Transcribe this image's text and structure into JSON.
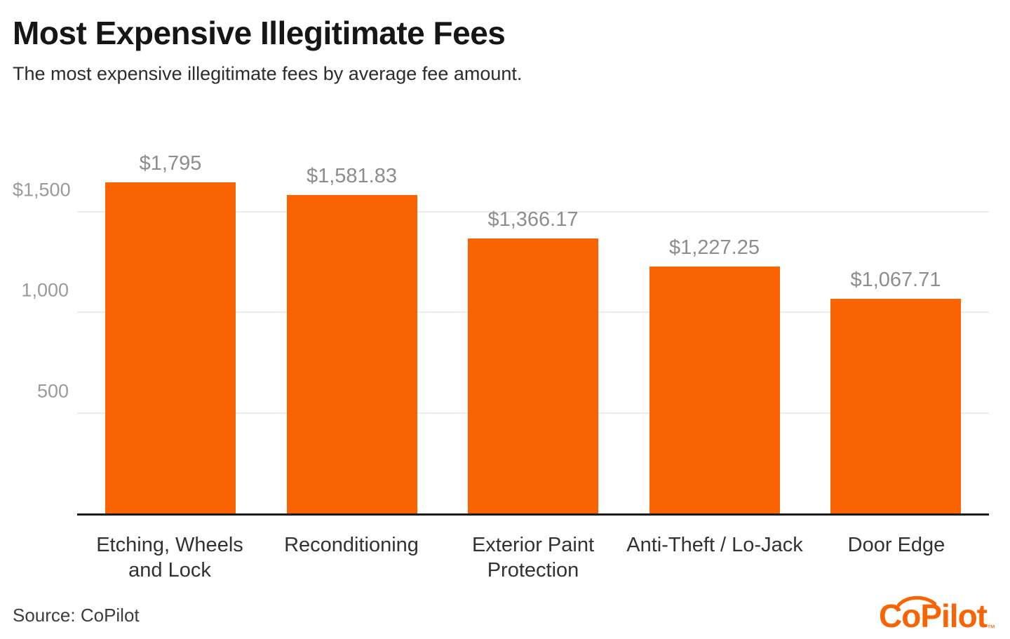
{
  "header": {
    "title": "Most Expensive Illegitimate Fees",
    "subtitle": "The most expensive illegitimate fees by average fee amount."
  },
  "chart_data": {
    "type": "bar",
    "title": "Most Expensive Illegitimate Fees",
    "categories": [
      "Etching, Wheels and Lock",
      "Reconditioning",
      "Exterior Paint Protection",
      "Anti-Theft / Lo-Jack",
      "Door Edge"
    ],
    "values": [
      1795,
      1581.83,
      1366.17,
      1227.25,
      1067.71
    ],
    "value_labels": [
      "$1,795",
      "$1,581.83",
      "$1,366.17",
      "$1,227.25",
      "$1,067.71"
    ],
    "y_ticks": [
      {
        "value": 1500,
        "label": "$1,500"
      },
      {
        "value": 1000,
        "label": "1,000"
      },
      {
        "value": 500,
        "label": "500"
      }
    ],
    "ylim": [
      0,
      1795
    ],
    "bar_color": "#F96302",
    "grid": "horizontal",
    "legend": "none"
  },
  "footer": {
    "source": "Source: CoPilot",
    "logo_text": "CoPilot",
    "logo_tm": "™",
    "logo_color": "#F96302"
  }
}
